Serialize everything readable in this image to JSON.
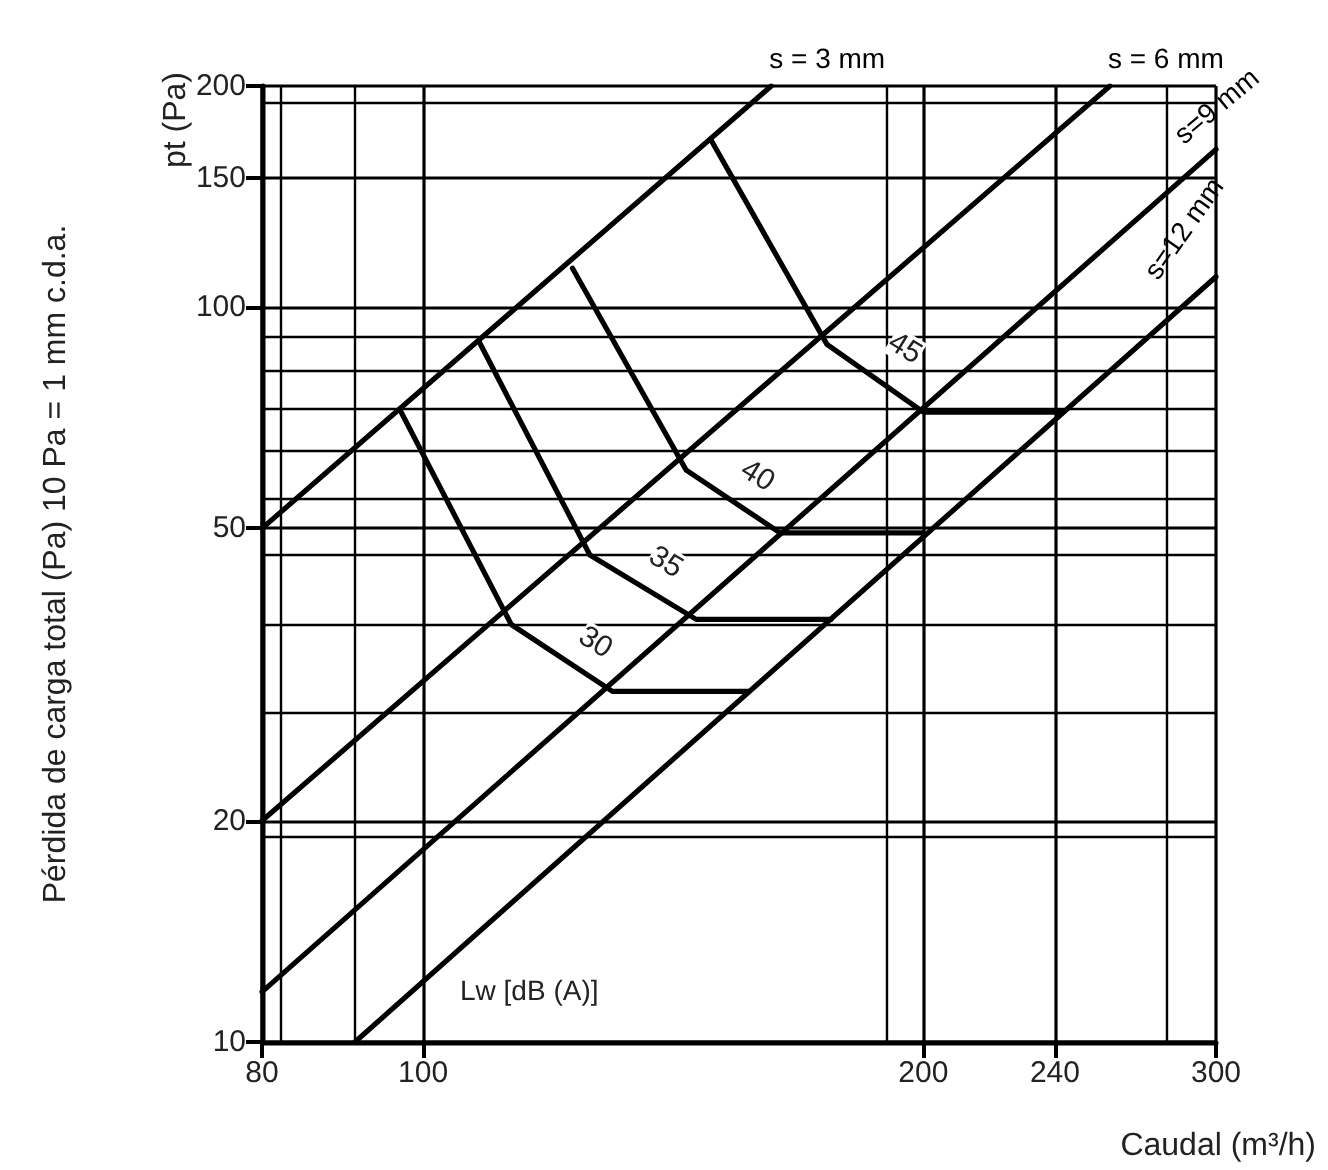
{
  "chart_data": {
    "type": "line",
    "xlabel": "Caudal (m³/h)",
    "ylabel": "pt (Pa)",
    "log": "xy",
    "grid": true,
    "legend": false,
    "marker": "none",
    "line_style": "solid",
    "xlim": [
      80,
      300
    ],
    "ylim": [
      10,
      200
    ],
    "xticks": [
      80,
      100,
      200,
      240,
      300
    ],
    "yticks": [
      10,
      20,
      50,
      100,
      150,
      200
    ],
    "series": [
      {
        "name": "s = 3 mm",
        "color": "#000000",
        "x": [
          80,
          162
        ],
        "values": [
          50,
          200
        ]
      },
      {
        "name": "s = 6 mm",
        "color": "#000000",
        "x": [
          80,
          259
        ],
        "values": [
          20,
          200
        ]
      },
      {
        "name": "s=9 mm",
        "color": "#000000",
        "x": [
          80,
          300
        ],
        "values": [
          11.7,
          164
        ]
      },
      {
        "name": "s=12 mm",
        "color": "#000000",
        "x": [
          91,
          300
        ],
        "values": [
          10,
          110
        ]
      },
      {
        "color": "#000000",
        "x": [
          97,
          113,
          130,
          157
        ],
        "values": [
          72,
          37,
          30,
          30
        ]
      },
      {
        "color": "#000000",
        "x": [
          108,
          126,
          146,
          176
        ],
        "values": [
          90,
          46,
          37.6,
          37.6
        ]
      },
      {
        "color": "#000000",
        "x": [
          123,
          144,
          164,
          200
        ],
        "values": [
          113,
          60,
          49.3,
          49.3
        ]
      },
      {
        "color": "#000000",
        "x": [
          149,
          175,
          200,
          242
        ],
        "values": [
          169,
          89,
          72,
          72
        ]
      }
    ],
    "annotations": [
      "Pérdida de carga total (Pa) 10 Pa = 1 mm c.d.a.",
      "Lw [dB (A)]",
      {
        "text": "30",
        "x": 127,
        "y": 35
      },
      {
        "text": "35",
        "x": 140,
        "y": 45
      },
      {
        "text": "40",
        "x": 159,
        "y": 59
      },
      {
        "text": "45",
        "x": 195,
        "y": 88
      }
    ]
  }
}
